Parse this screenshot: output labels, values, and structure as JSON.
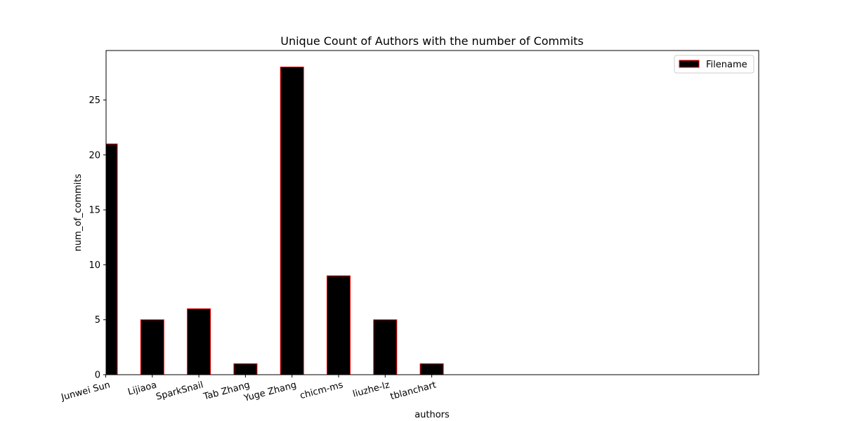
{
  "chart_data": {
    "type": "bar",
    "title": "Unique Count of Authors with the number of Commits",
    "xlabel": "authors",
    "ylabel": "num_of_commits",
    "categories": [
      "Junwei Sun",
      "Lijiaoa",
      "SparkSnail",
      "Tab Zhang",
      "Yuge Zhang",
      "chicm-ms",
      "liuzhe-lz",
      "tblanchart"
    ],
    "series": [
      {
        "name": "Filename",
        "values": [
          21,
          5,
          6,
          1,
          28,
          9,
          5,
          1
        ]
      }
    ],
    "ylim": [
      0,
      29.5
    ],
    "yticks": [
      0,
      5,
      10,
      15,
      20,
      25
    ],
    "grid": false,
    "legend_position": "top-right",
    "colors": {
      "bar_fill": "#000000",
      "bar_edge": "#ff0000",
      "axes": "#000000"
    }
  }
}
